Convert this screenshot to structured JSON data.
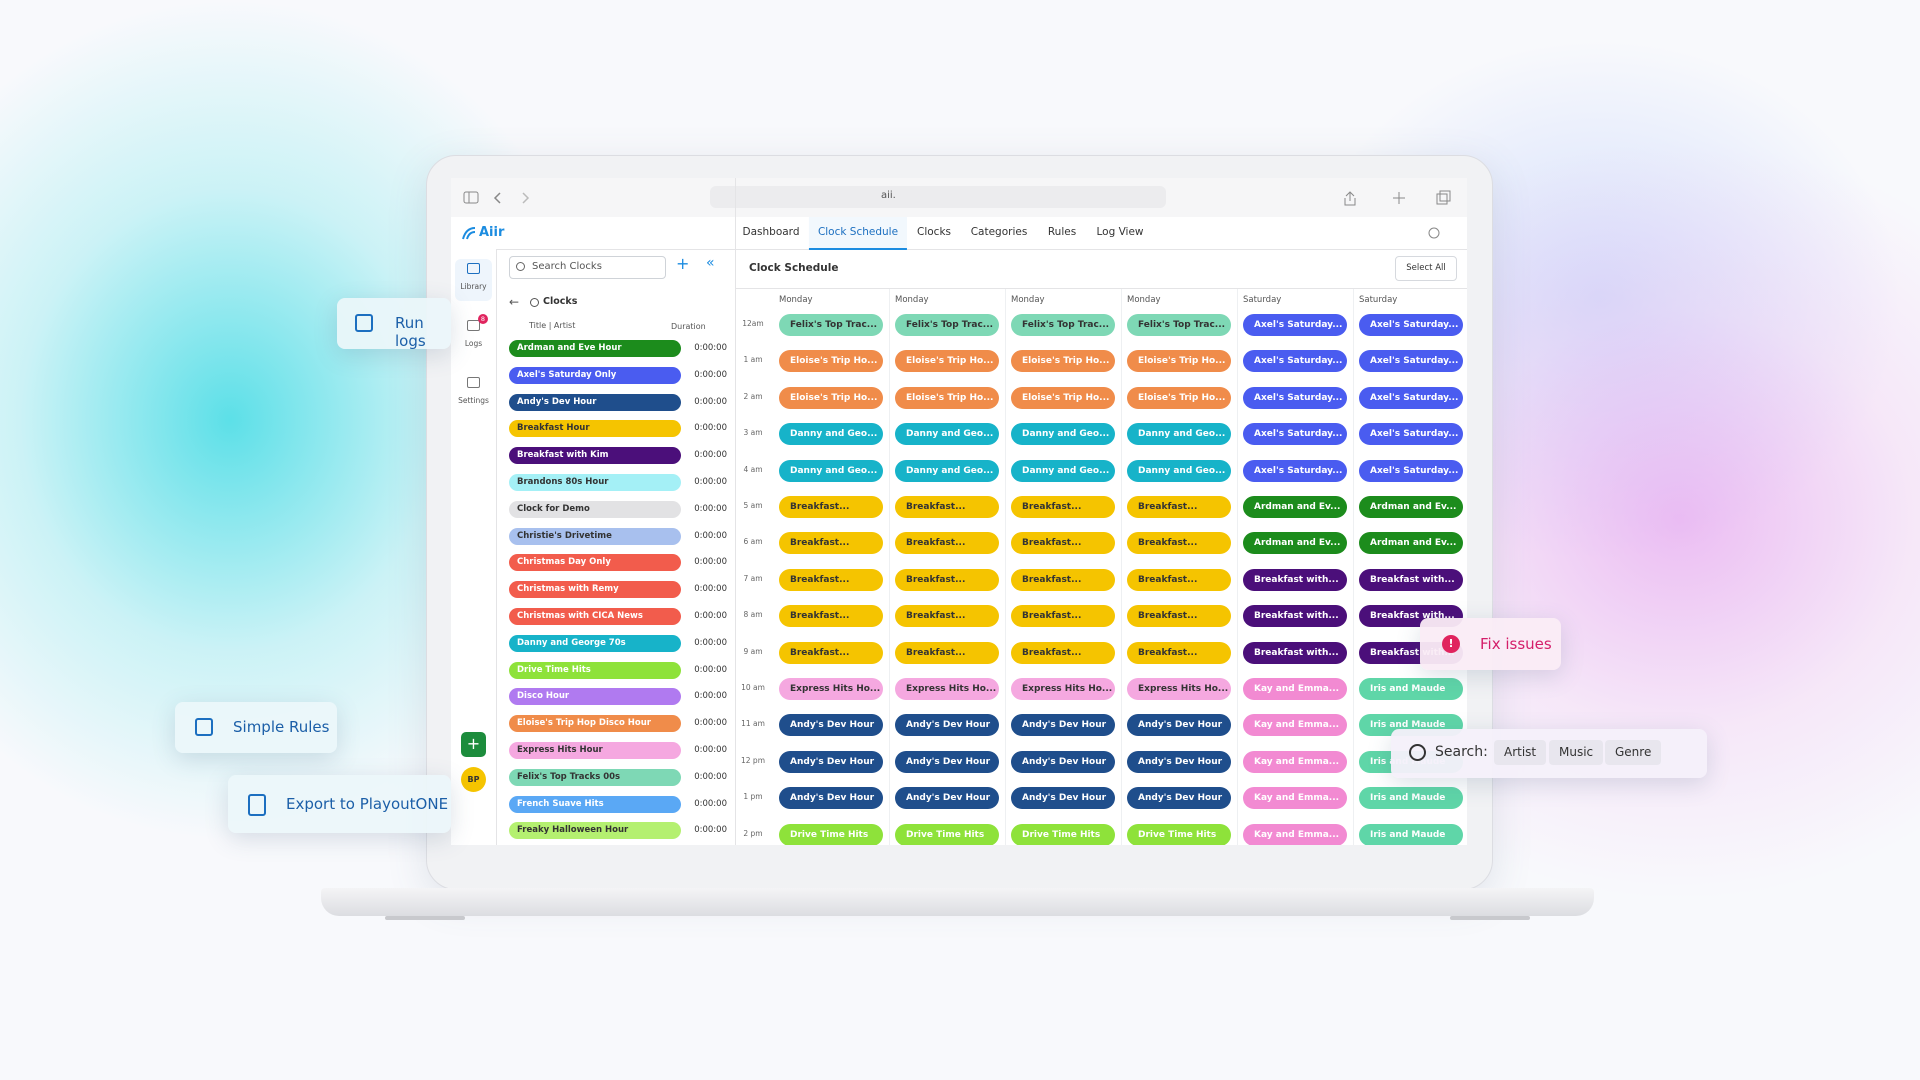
{
  "browser": {
    "url": "aii."
  },
  "app": {
    "logo": "Aiir",
    "tabs": [
      "Dashboard",
      "Clock Schedule",
      "Clocks",
      "Categories",
      "Rules",
      "Log View"
    ],
    "active_tab": 1
  },
  "sidebar": {
    "items": [
      {
        "label": "Library",
        "active": true
      },
      {
        "label": "Logs",
        "badge": "8"
      },
      {
        "label": "Settings"
      }
    ],
    "avatar": "BP"
  },
  "clocks_panel": {
    "search_placeholder": "Search Clocks",
    "heading": "Clocks",
    "columns": [
      "Title | Artist",
      "Duration"
    ],
    "rows": [
      {
        "name": "Ardman and Eve Hour",
        "duration": "0:00:00",
        "color": "#1c8c1c"
      },
      {
        "name": "Axel's Saturday Only",
        "duration": "0:00:00",
        "color": "#4a5cf0"
      },
      {
        "name": "Andy's Dev Hour",
        "duration": "0:00:00",
        "color": "#1f4e8c"
      },
      {
        "name": "Breakfast Hour",
        "duration": "0:00:00",
        "color": "#f5c400"
      },
      {
        "name": "Breakfast with Kim",
        "duration": "0:00:00",
        "color": "#4b0f7a"
      },
      {
        "name": "Brandons 80s Hour",
        "duration": "0:00:00",
        "color": "#a4f0f6"
      },
      {
        "name": "Clock for Demo",
        "duration": "0:00:00",
        "color": "#e2e2e4"
      },
      {
        "name": "Christie's Drivetime",
        "duration": "0:00:00",
        "color": "#a8c0ee"
      },
      {
        "name": "Christmas Day Only",
        "duration": "0:00:00",
        "color": "#f25c4c"
      },
      {
        "name": "Christmas with Remy",
        "duration": "0:00:00",
        "color": "#f25c4c"
      },
      {
        "name": "Christmas with CICA News",
        "duration": "0:00:00",
        "color": "#f25c4c"
      },
      {
        "name": "Danny and George 70s",
        "duration": "0:00:00",
        "color": "#17b3c9"
      },
      {
        "name": "Drive Time Hits",
        "duration": "0:00:00",
        "color": "#8ee23a"
      },
      {
        "name": "Disco Hour",
        "duration": "0:00:00",
        "color": "#b07af0"
      },
      {
        "name": "Eloise's Trip Hop Disco Hour",
        "duration": "0:00:00",
        "color": "#f08c4a"
      },
      {
        "name": "Express Hits Hour",
        "duration": "0:00:00",
        "color": "#f5a8e0"
      },
      {
        "name": "Felix's Top Tracks 00s",
        "duration": "0:00:00",
        "color": "#7ed8b5"
      },
      {
        "name": "French Suave Hits",
        "duration": "0:00:00",
        "color": "#5aa8f5"
      },
      {
        "name": "Freaky Halloween Hour",
        "duration": "0:00:00",
        "color": "#b4f070"
      }
    ]
  },
  "schedule": {
    "title": "Clock Schedule",
    "select_all": "Select All",
    "days": [
      "Monday",
      "Monday",
      "Monday",
      "Monday",
      "Saturday",
      "Saturday"
    ],
    "times": [
      "12am",
      "1 am",
      "2 am",
      "3 am",
      "4 am",
      "5 am",
      "6 am",
      "7 am",
      "8 am",
      "9 am",
      "10 am",
      "11 am",
      "12 pm",
      "1 pm",
      "2 pm"
    ],
    "cells": [
      [
        {
          "label": "Felix's Top Trac...",
          "color": "#7ed8b5"
        },
        {
          "label": "Felix's Top Trac...",
          "color": "#7ed8b5"
        },
        {
          "label": "Felix's Top Trac...",
          "color": "#7ed8b5"
        },
        {
          "label": "Felix's Top Trac...",
          "color": "#7ed8b5"
        },
        {
          "label": "Axel's Saturday...",
          "color": "#4a5cf0"
        },
        {
          "label": "Axel's Saturday...",
          "color": "#4a5cf0"
        }
      ],
      [
        {
          "label": "Eloise's Trip Ho...",
          "color": "#f08c4a"
        },
        {
          "label": "Eloise's Trip Ho...",
          "color": "#f08c4a"
        },
        {
          "label": "Eloise's Trip Ho...",
          "color": "#f08c4a"
        },
        {
          "label": "Eloise's Trip Ho...",
          "color": "#f08c4a"
        },
        {
          "label": "Axel's Saturday...",
          "color": "#4a5cf0"
        },
        {
          "label": "Axel's Saturday...",
          "color": "#4a5cf0"
        }
      ],
      [
        {
          "label": "Eloise's Trip Ho...",
          "color": "#f08c4a"
        },
        {
          "label": "Eloise's Trip Ho...",
          "color": "#f08c4a"
        },
        {
          "label": "Eloise's Trip Ho...",
          "color": "#f08c4a"
        },
        {
          "label": "Eloise's Trip Ho...",
          "color": "#f08c4a"
        },
        {
          "label": "Axel's Saturday...",
          "color": "#4a5cf0"
        },
        {
          "label": "Axel's Saturday...",
          "color": "#4a5cf0"
        }
      ],
      [
        {
          "label": "Danny and Geo...",
          "color": "#17b3c9"
        },
        {
          "label": "Danny and Geo...",
          "color": "#17b3c9"
        },
        {
          "label": "Danny and Geo...",
          "color": "#17b3c9"
        },
        {
          "label": "Danny and Geo...",
          "color": "#17b3c9"
        },
        {
          "label": "Axel's Saturday...",
          "color": "#4a5cf0"
        },
        {
          "label": "Axel's Saturday...",
          "color": "#4a5cf0"
        }
      ],
      [
        {
          "label": "Danny and Geo...",
          "color": "#17b3c9"
        },
        {
          "label": "Danny and Geo...",
          "color": "#17b3c9"
        },
        {
          "label": "Danny and Geo...",
          "color": "#17b3c9"
        },
        {
          "label": "Danny and Geo...",
          "color": "#17b3c9"
        },
        {
          "label": "Axel's Saturday...",
          "color": "#4a5cf0"
        },
        {
          "label": "Axel's Saturday...",
          "color": "#4a5cf0"
        }
      ],
      [
        {
          "label": "Breakfast...",
          "color": "#f5c400"
        },
        {
          "label": "Breakfast...",
          "color": "#f5c400"
        },
        {
          "label": "Breakfast...",
          "color": "#f5c400"
        },
        {
          "label": "Breakfast...",
          "color": "#f5c400"
        },
        {
          "label": "Ardman and Ev...",
          "color": "#1c8c1c"
        },
        {
          "label": "Ardman and Ev...",
          "color": "#1c8c1c"
        }
      ],
      [
        {
          "label": "Breakfast...",
          "color": "#f5c400"
        },
        {
          "label": "Breakfast...",
          "color": "#f5c400"
        },
        {
          "label": "Breakfast...",
          "color": "#f5c400"
        },
        {
          "label": "Breakfast...",
          "color": "#f5c400"
        },
        {
          "label": "Ardman and Ev...",
          "color": "#1c8c1c"
        },
        {
          "label": "Ardman and Ev...",
          "color": "#1c8c1c"
        }
      ],
      [
        {
          "label": "Breakfast...",
          "color": "#f5c400"
        },
        {
          "label": "Breakfast...",
          "color": "#f5c400"
        },
        {
          "label": "Breakfast...",
          "color": "#f5c400"
        },
        {
          "label": "Breakfast...",
          "color": "#f5c400"
        },
        {
          "label": "Breakfast with...",
          "color": "#4b0f7a"
        },
        {
          "label": "Breakfast with...",
          "color": "#4b0f7a"
        }
      ],
      [
        {
          "label": "Breakfast...",
          "color": "#f5c400"
        },
        {
          "label": "Breakfast...",
          "color": "#f5c400"
        },
        {
          "label": "Breakfast...",
          "color": "#f5c400"
        },
        {
          "label": "Breakfast...",
          "color": "#f5c400"
        },
        {
          "label": "Breakfast with...",
          "color": "#4b0f7a"
        },
        {
          "label": "Breakfast with...",
          "color": "#4b0f7a"
        }
      ],
      [
        {
          "label": "Breakfast...",
          "color": "#f5c400"
        },
        {
          "label": "Breakfast...",
          "color": "#f5c400"
        },
        {
          "label": "Breakfast...",
          "color": "#f5c400"
        },
        {
          "label": "Breakfast...",
          "color": "#f5c400"
        },
        {
          "label": "Breakfast with...",
          "color": "#4b0f7a"
        },
        {
          "label": "Breakfast with...",
          "color": "#4b0f7a"
        }
      ],
      [
        {
          "label": "Express Hits Ho...",
          "color": "#f5a8e0"
        },
        {
          "label": "Express Hits Ho...",
          "color": "#f5a8e0"
        },
        {
          "label": "Express Hits Ho...",
          "color": "#f5a8e0"
        },
        {
          "label": "Express Hits Ho...",
          "color": "#f5a8e0"
        },
        {
          "label": "Kay and Emma...",
          "color": "#f28ad2"
        },
        {
          "label": "Iris and Maude",
          "color": "#5fd6a8"
        }
      ],
      [
        {
          "label": "Andy's Dev Hour",
          "color": "#1f4e8c"
        },
        {
          "label": "Andy's Dev Hour",
          "color": "#1f4e8c"
        },
        {
          "label": "Andy's Dev Hour",
          "color": "#1f4e8c"
        },
        {
          "label": "Andy's Dev Hour",
          "color": "#1f4e8c"
        },
        {
          "label": "Kay and Emma...",
          "color": "#f28ad2"
        },
        {
          "label": "Iris and Maude",
          "color": "#5fd6a8"
        }
      ],
      [
        {
          "label": "Andy's Dev Hour",
          "color": "#1f4e8c"
        },
        {
          "label": "Andy's Dev Hour",
          "color": "#1f4e8c"
        },
        {
          "label": "Andy's Dev Hour",
          "color": "#1f4e8c"
        },
        {
          "label": "Andy's Dev Hour",
          "color": "#1f4e8c"
        },
        {
          "label": "Kay and Emma...",
          "color": "#f28ad2"
        },
        {
          "label": "Iris and Maude",
          "color": "#5fd6a8"
        }
      ],
      [
        {
          "label": "Andy's Dev Hour",
          "color": "#1f4e8c"
        },
        {
          "label": "Andy's Dev Hour",
          "color": "#1f4e8c"
        },
        {
          "label": "Andy's Dev Hour",
          "color": "#1f4e8c"
        },
        {
          "label": "Andy's Dev Hour",
          "color": "#1f4e8c"
        },
        {
          "label": "Kay and Emma...",
          "color": "#f28ad2"
        },
        {
          "label": "Iris and Maude",
          "color": "#5fd6a8"
        }
      ],
      [
        {
          "label": "Drive Time Hits",
          "color": "#8ee23a"
        },
        {
          "label": "Drive Time Hits",
          "color": "#8ee23a"
        },
        {
          "label": "Drive Time Hits",
          "color": "#8ee23a"
        },
        {
          "label": "Drive Time Hits",
          "color": "#8ee23a"
        },
        {
          "label": "Kay and Emma...",
          "color": "#f28ad2"
        },
        {
          "label": "Iris and Maude",
          "color": "#5fd6a8"
        }
      ]
    ]
  },
  "callouts": {
    "run_logs": "Run logs",
    "simple_rules": "Simple Rules",
    "export": "Export to PlayoutONE",
    "fix_issues": "Fix issues",
    "search": {
      "label": "Search:",
      "chips": [
        "Artist",
        "Music",
        "Genre"
      ]
    }
  }
}
